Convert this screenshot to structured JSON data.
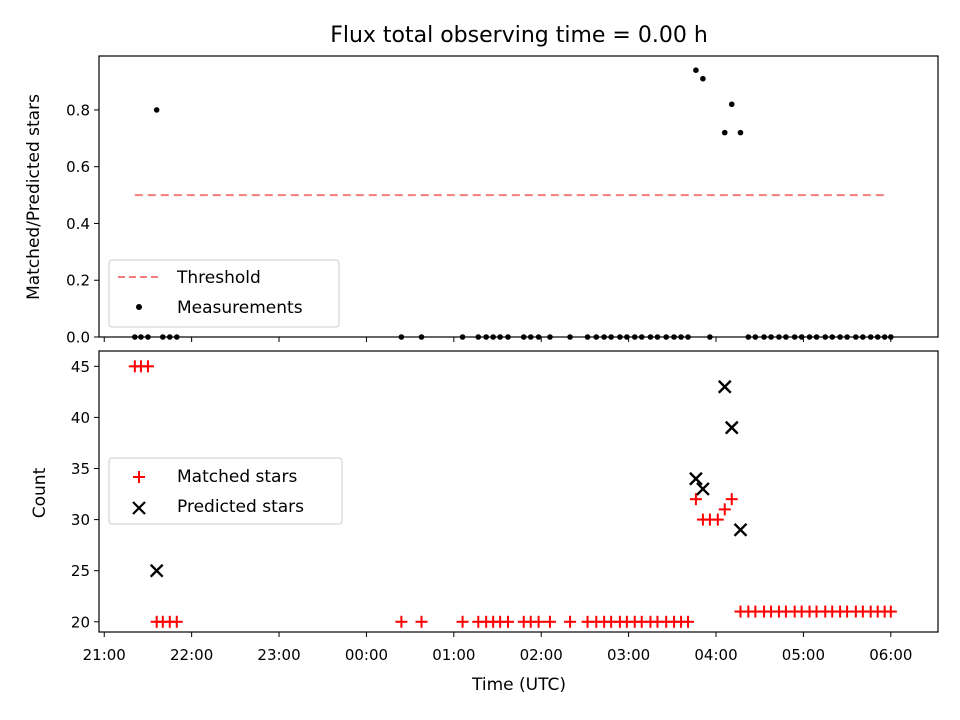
{
  "figure": {
    "title": "Flux total observing time = 0.00 h"
  },
  "chart_data": [
    {
      "type": "scatter",
      "ylabel": "Matched/Predicted stars",
      "xlabel": "",
      "ylim": [
        0.0,
        0.99
      ],
      "yticks": [
        "0.0",
        "0.2",
        "0.4",
        "0.6",
        "0.8"
      ],
      "yticks_values": [
        0.0,
        0.2,
        0.4,
        0.6,
        0.8
      ],
      "xlim_hours": [
        20.94,
        30.54
      ],
      "grid": false,
      "legend": {
        "placement": "lower-left",
        "entries": [
          "Threshold",
          "Measurements"
        ]
      },
      "threshold": {
        "name": "Threshold",
        "value": 0.5,
        "x_range_hours": [
          21.35,
          29.97
        ],
        "color": "#f47c7c",
        "style": "dashed"
      },
      "series": [
        {
          "name": "Measurements",
          "color": "#000000",
          "marker": "dot",
          "x_hours": [
            21.35,
            21.42,
            21.5,
            21.6,
            21.67,
            21.75,
            21.83,
            24.4,
            24.63,
            25.1,
            25.28,
            25.37,
            25.45,
            25.53,
            25.62,
            25.8,
            25.88,
            25.97,
            26.1,
            26.33,
            26.53,
            26.63,
            26.72,
            26.8,
            26.9,
            26.98,
            27.07,
            27.15,
            27.25,
            27.33,
            27.43,
            27.52,
            27.6,
            27.68,
            27.77,
            27.85,
            27.93,
            28.1,
            28.18,
            28.28,
            28.37,
            28.45,
            28.55,
            28.63,
            28.72,
            28.8,
            28.9,
            28.98,
            29.07,
            29.15,
            29.25,
            29.33,
            29.42,
            29.5,
            29.6,
            29.68,
            29.77,
            29.85,
            29.93,
            30.0
          ],
          "y": [
            0.0,
            0.0,
            0.0,
            0.8,
            0.0,
            0.0,
            0.0,
            0.0,
            0.0,
            0.0,
            0.0,
            0.0,
            0.0,
            0.0,
            0.0,
            0.0,
            0.0,
            0.0,
            0.0,
            0.0,
            0.0,
            0.0,
            0.0,
            0.0,
            0.0,
            0.0,
            0.0,
            0.0,
            0.0,
            0.0,
            0.0,
            0.0,
            0.0,
            0.0,
            0.94,
            0.91,
            0.0,
            0.72,
            0.82,
            0.72,
            0.0,
            0.0,
            0.0,
            0.0,
            0.0,
            0.0,
            0.0,
            0.0,
            0.0,
            0.0,
            0.0,
            0.0,
            0.0,
            0.0,
            0.0,
            0.0,
            0.0,
            0.0,
            0.0,
            0.0
          ]
        }
      ]
    },
    {
      "type": "scatter",
      "ylabel": "Count",
      "xlabel": "Time (UTC)",
      "ylim": [
        19.0,
        46.5
      ],
      "yticks": [
        "20",
        "25",
        "30",
        "35",
        "40",
        "45"
      ],
      "yticks_values": [
        20,
        25,
        30,
        35,
        40,
        45
      ],
      "xlim_hours": [
        20.94,
        30.54
      ],
      "xticks": [
        "21:00",
        "22:00",
        "23:00",
        "00:00",
        "01:00",
        "02:00",
        "03:00",
        "04:00",
        "05:00",
        "06:00"
      ],
      "xticks_hours": [
        21,
        22,
        23,
        24,
        25,
        26,
        27,
        28,
        29,
        30
      ],
      "grid": false,
      "legend": {
        "placement": "center-left",
        "entries": [
          "Matched stars",
          "Predicted stars"
        ]
      },
      "series": [
        {
          "name": "Matched stars",
          "color": "#ff0000",
          "marker": "plus",
          "x_hours": [
            21.35,
            21.42,
            21.5,
            21.6,
            21.67,
            21.75,
            21.83,
            24.4,
            24.63,
            25.1,
            25.28,
            25.37,
            25.45,
            25.53,
            25.62,
            25.8,
            25.88,
            25.97,
            26.1,
            26.33,
            26.53,
            26.63,
            26.72,
            26.8,
            26.9,
            26.98,
            27.07,
            27.15,
            27.25,
            27.33,
            27.43,
            27.52,
            27.6,
            27.68,
            27.77,
            27.85,
            27.93,
            28.02,
            28.1,
            28.18,
            28.28,
            28.37,
            28.45,
            28.55,
            28.63,
            28.72,
            28.8,
            28.9,
            28.98,
            29.07,
            29.15,
            29.25,
            29.33,
            29.42,
            29.5,
            29.6,
            29.68,
            29.77,
            29.85,
            29.93,
            30.0
          ],
          "y": [
            45,
            45,
            45,
            20,
            20,
            20,
            20,
            20,
            20,
            20,
            20,
            20,
            20,
            20,
            20,
            20,
            20,
            20,
            20,
            20,
            20,
            20,
            20,
            20,
            20,
            20,
            20,
            20,
            20,
            20,
            20,
            20,
            20,
            20,
            32,
            30,
            30,
            30,
            31,
            32,
            21,
            21,
            21,
            21,
            21,
            21,
            21,
            21,
            21,
            21,
            21,
            21,
            21,
            21,
            21,
            21,
            21,
            21,
            21,
            21,
            21
          ]
        },
        {
          "name": "Predicted stars",
          "color": "#000000",
          "marker": "x",
          "x_hours": [
            21.6,
            27.77,
            27.85,
            28.1,
            28.18,
            28.28
          ],
          "y": [
            25,
            34,
            33,
            43,
            39,
            29
          ]
        }
      ]
    }
  ]
}
